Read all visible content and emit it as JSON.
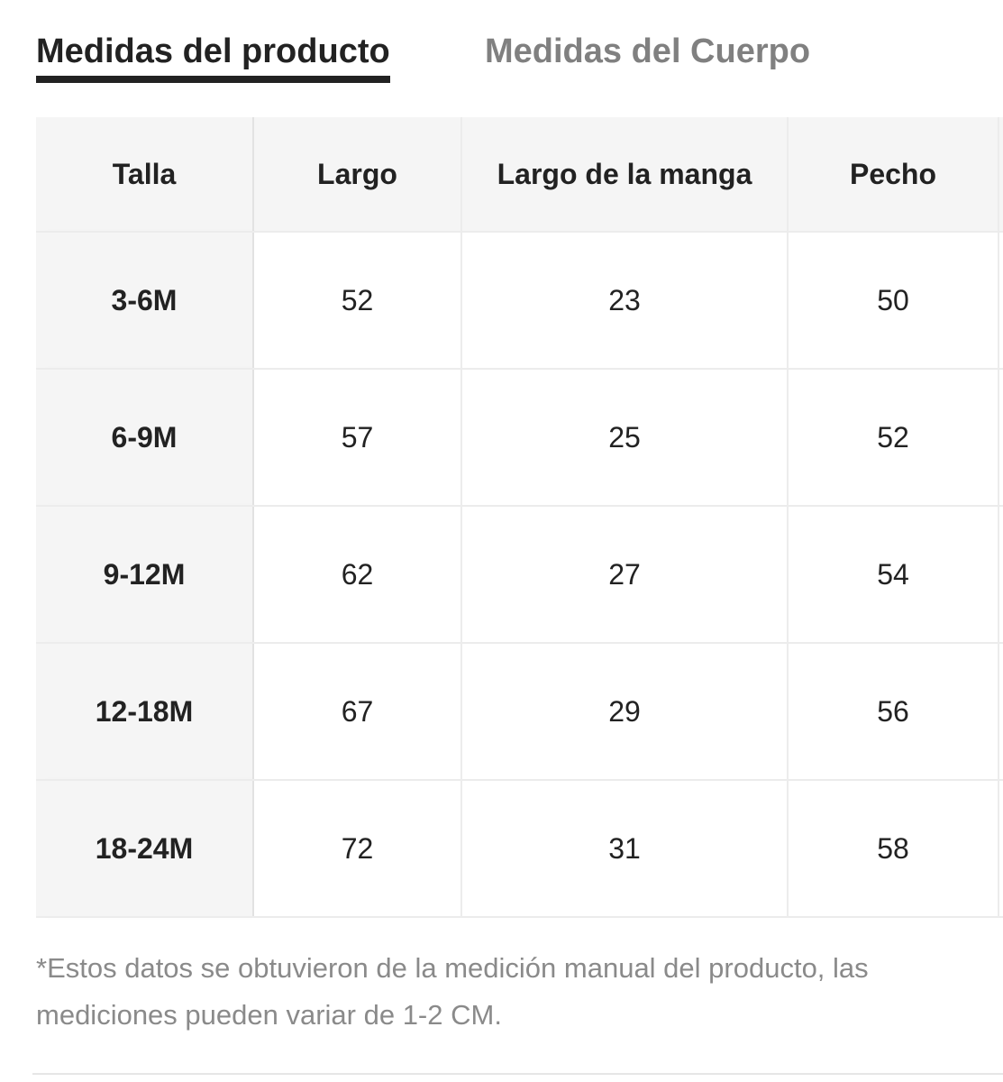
{
  "tabs": {
    "product": "Medidas del producto",
    "body": "Medidas del Cuerpo"
  },
  "table": {
    "headers": [
      "Talla",
      "Largo",
      "Largo de la manga",
      "Pecho"
    ],
    "rows": [
      [
        "3-6M",
        "52",
        "23",
        "50"
      ],
      [
        "6-9M",
        "57",
        "25",
        "52"
      ],
      [
        "9-12M",
        "62",
        "27",
        "54"
      ],
      [
        "12-18M",
        "67",
        "29",
        "56"
      ],
      [
        "18-24M",
        "72",
        "31",
        "58"
      ]
    ]
  },
  "note": "*Estos datos se obtuvieron de la medición manual del producto, las mediciones pueden variar de 1-2 CM."
}
